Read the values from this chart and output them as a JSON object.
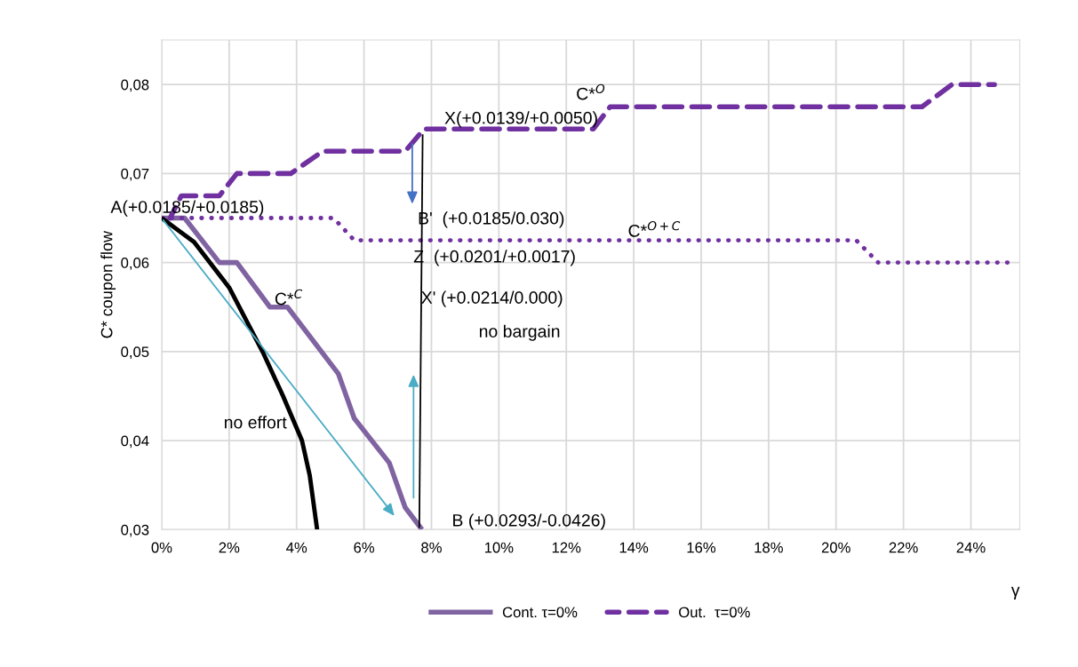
{
  "chart_data": {
    "type": "line",
    "ylabel": "C* coupon flow",
    "xlabel": "γ",
    "xlim": [
      0,
      25.45
    ],
    "ylim": [
      0.03,
      0.085
    ],
    "xticks": [
      {
        "value": 0,
        "label": "0%"
      },
      {
        "value": 2,
        "label": "2%"
      },
      {
        "value": 4,
        "label": "4%"
      },
      {
        "value": 6,
        "label": "6%"
      },
      {
        "value": 8,
        "label": "8%"
      },
      {
        "value": 10,
        "label": "10%"
      },
      {
        "value": 12,
        "label": "12%"
      },
      {
        "value": 14,
        "label": "14%"
      },
      {
        "value": 16,
        "label": "16%"
      },
      {
        "value": 18,
        "label": "18%"
      },
      {
        "value": 20,
        "label": "20%"
      },
      {
        "value": 22,
        "label": "22%"
      },
      {
        "value": 24,
        "label": "24%"
      }
    ],
    "yticks": [
      {
        "value": 0.03,
        "label": "0,03"
      },
      {
        "value": 0.04,
        "label": "0,04"
      },
      {
        "value": 0.05,
        "label": "0,05"
      },
      {
        "value": 0.06,
        "label": "0,06"
      },
      {
        "value": 0.07,
        "label": "0,07"
      },
      {
        "value": 0.08,
        "label": "0,08"
      }
    ],
    "grid": true,
    "legend": "bottom",
    "series": [
      {
        "name": "Cont. τ=0%",
        "color": "#8064a2",
        "line_style": "solid",
        "x": [
          0,
          0.68,
          1.71,
          2.23,
          3.21,
          3.73,
          5.24,
          5.71,
          6.75,
          7.22,
          7.72
        ],
        "values": [
          0.065,
          0.065,
          0.06,
          0.06,
          0.055,
          0.055,
          0.0475,
          0.0425,
          0.0375,
          0.0325,
          0.03
        ]
      },
      {
        "name": "Out.  τ=0%",
        "color": "#7030a0",
        "line_style": "dashed",
        "x": [
          0.25,
          0.58,
          1.71,
          2.23,
          3.83,
          4.77,
          7.22,
          7.78,
          12.8,
          13.3,
          22.55,
          23.44,
          24.7
        ],
        "values": [
          0.065,
          0.0675,
          0.0675,
          0.07,
          0.07,
          0.0725,
          0.0725,
          0.075,
          0.075,
          0.0775,
          0.0775,
          0.08,
          0.08
        ]
      },
      {
        "color": "#7030a0",
        "line_style": "dotted",
        "x": [
          0,
          5.1,
          5.71,
          20.6,
          21.25,
          25.1
        ],
        "values": [
          0.065,
          0.065,
          0.0625,
          0.0625,
          0.06,
          0.06
        ]
      },
      {
        "color": "#000000",
        "line_style": "solid",
        "x": [
          0,
          0.96,
          2.0,
          2.99,
          3.6,
          4.16,
          4.39,
          4.61
        ],
        "values": [
          0.065,
          0.0623,
          0.0572,
          0.05,
          0.045,
          0.04,
          0.0361,
          0.03
        ]
      },
      {
        "color": "#000000",
        "line_style": "solid",
        "x": [
          7.74,
          7.64
        ],
        "values": [
          0.0744,
          0.0302
        ]
      }
    ],
    "annotations": [
      "A(+0.0185/+0.0185)",
      "C*$^{C}$",
      "no effort",
      "X(+0.0139/+0.0050)",
      "C*$^{O}$",
      "B'  (+0.0185/0.030)",
      "C*$^{O+C}$",
      "Z  (+0.0201/+0.0017)",
      "X' (+0.0214/0.000)",
      "no bargain",
      "B (+0.0293/-0.0426)"
    ]
  }
}
